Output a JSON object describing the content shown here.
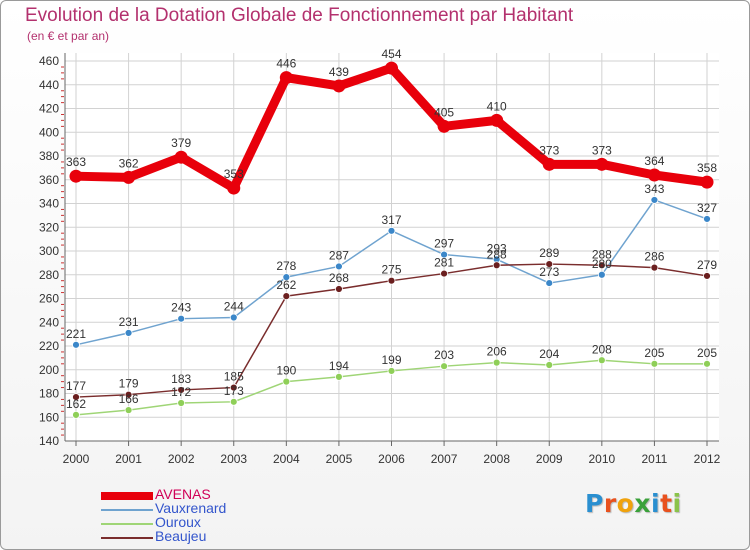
{
  "title": "Evolution de la Dotation Globale de Fonctionnement par Habitant",
  "subtitle": "(en € et par an)",
  "logo": {
    "text": "Proxiti",
    "letters": [
      "P",
      "r",
      "o",
      "x",
      "i",
      "t",
      "i"
    ],
    "colors": [
      "#2a8fd0",
      "#e8511e",
      "#f0a20c",
      "#3aa13a",
      "#2a8fd0",
      "#e8511e",
      "#8bc34a"
    ]
  },
  "chart_data": {
    "type": "line",
    "title": "Evolution de la Dotation Globale de Fonctionnement par Habitant",
    "subtitle": "(en € et par an)",
    "categories": [
      "2000",
      "2001",
      "2002",
      "2003",
      "2004",
      "2005",
      "2006",
      "2007",
      "2008",
      "2009",
      "2010",
      "2011",
      "2012"
    ],
    "ylim": [
      140,
      460
    ],
    "yticks": [
      140,
      160,
      180,
      200,
      220,
      240,
      260,
      280,
      300,
      320,
      340,
      360,
      380,
      400,
      420,
      440,
      460
    ],
    "grid": true,
    "legend_position": "bottom-left",
    "series": [
      {
        "name": "AVENAS",
        "color": "#e8000b",
        "values": [
          363,
          362,
          379,
          353,
          446,
          439,
          454,
          405,
          410,
          373,
          373,
          364,
          358
        ]
      },
      {
        "name": "Vauxrenard",
        "color": "#6fa3cf",
        "values": [
          221,
          231,
          243,
          244,
          278,
          287,
          317,
          297,
          293,
          273,
          280,
          343,
          327
        ]
      },
      {
        "name": "Ouroux",
        "color": "#9fd576",
        "values": [
          162,
          166,
          172,
          173,
          190,
          194,
          199,
          203,
          206,
          204,
          208,
          205,
          205
        ]
      },
      {
        "name": "Beaujeu",
        "color": "#7a2d2d",
        "values": [
          177,
          179,
          183,
          185,
          262,
          268,
          275,
          281,
          288,
          289,
          288,
          286,
          279
        ]
      }
    ]
  }
}
